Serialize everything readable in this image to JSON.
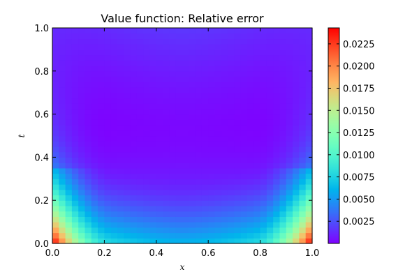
{
  "chart_data": {
    "type": "heatmap",
    "title": "Value function: Relative error",
    "xlabel": "x",
    "ylabel": "t",
    "xlim": [
      0.0,
      1.0
    ],
    "ylim": [
      0.0,
      1.0
    ],
    "x_ticks": [
      "0.0",
      "0.2",
      "0.4",
      "0.6",
      "0.8",
      "1.0"
    ],
    "y_ticks": [
      "0.0",
      "0.2",
      "0.4",
      "0.6",
      "0.8",
      "1.0"
    ],
    "grid_size": [
      40,
      40
    ],
    "colormap": "rainbow",
    "colorbar": {
      "min": 0.0,
      "max": 0.0243,
      "tick_values": [
        0.0025,
        0.005,
        0.0075,
        0.01,
        0.0125,
        0.015,
        0.0175,
        0.02,
        0.0225
      ],
      "tick_labels": [
        "0.0025",
        "0.0050",
        "0.0075",
        "0.0100",
        "0.0125",
        "0.0150",
        "0.0175",
        "0.0200",
        "0.0225"
      ]
    },
    "sample_values": [
      {
        "x": 0.0,
        "t": 0.0,
        "value": 0.0243
      },
      {
        "x": 1.0,
        "t": 0.0,
        "value": 0.0243
      },
      {
        "x": 0.5,
        "t": 0.0,
        "value": 0.0045
      },
      {
        "x": 0.0,
        "t": 0.2,
        "value": 0.0125
      },
      {
        "x": 0.5,
        "t": 0.3,
        "value": 0.0005
      },
      {
        "x": 0.0,
        "t": 0.65,
        "value": 0.0003
      },
      {
        "x": 1.0,
        "t": 0.5,
        "value": 0.0003
      },
      {
        "x": 0.5,
        "t": 1.0,
        "value": 0.0028
      },
      {
        "x": 1.0,
        "t": 1.0,
        "value": 0.0045
      }
    ]
  }
}
